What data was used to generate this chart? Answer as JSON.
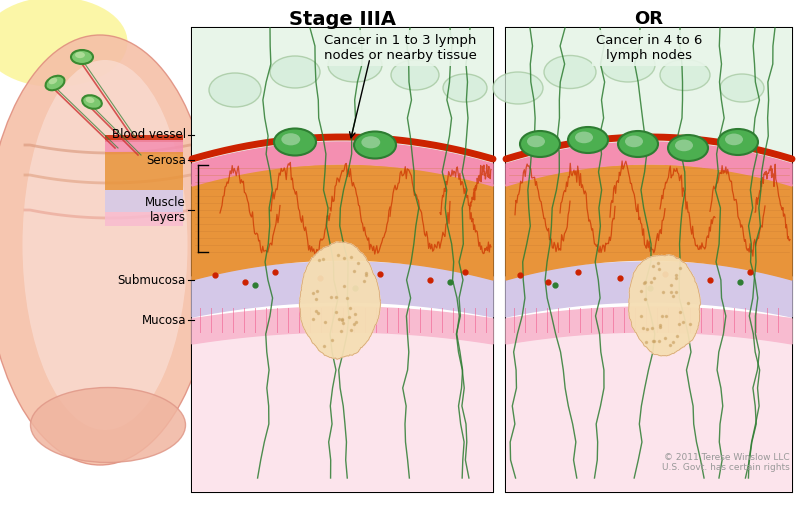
{
  "title": "Stage IIIA",
  "or_label": "OR",
  "panel1_text": "Cancer in 1 to 3 lymph\nnodes or nearby tissue",
  "panel2_text": "Cancer in 4 to 6\nlymph nodes",
  "copyright": "© 2011 Terese Winslow LLC\nU.S. Govt. has certain rights",
  "bg_color": "#ffffff",
  "mucosa_color": "#f8bbd0",
  "submucosa_color": "#d4c8e8",
  "muscle_color": "#e8943a",
  "serosa_color": "#f8bbd0",
  "cancer_color": "#f5deb3",
  "lymph_normal_color": "#c8e6c9",
  "lymph_cancer_color": "#4caf50",
  "blood_vessel_color": "#cc2200",
  "nerve_color": "#2e7d32"
}
